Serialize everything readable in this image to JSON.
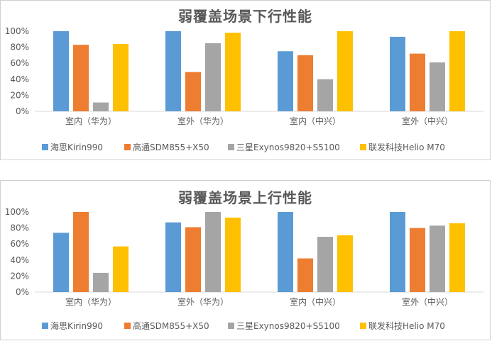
{
  "colors": {
    "series": [
      "#5b9bd5",
      "#ed7d31",
      "#a5a5a5",
      "#ffc000"
    ],
    "axis": "#d9d9d9",
    "text": "#595959"
  },
  "chart_data": [
    {
      "type": "bar",
      "title": "弱覆盖场景下行性能",
      "categories": [
        "室内（华为）",
        "室外（华为）",
        "室内（中兴）",
        "室外（中兴）"
      ],
      "ylim": [
        0,
        100
      ],
      "yticks": [
        "0%",
        "20%",
        "40%",
        "60%",
        "80%",
        "100%"
      ],
      "grid": false,
      "legend_position": "bottom",
      "series": [
        {
          "name": "海思Kirin990",
          "values": [
            100,
            100,
            75,
            93
          ]
        },
        {
          "name": "高通SDM855+X50",
          "values": [
            83,
            49,
            70,
            72
          ]
        },
        {
          "name": "三星Exynos9820+S5100",
          "values": [
            11,
            85,
            40,
            61
          ]
        },
        {
          "name": "联发科技Helio M70",
          "values": [
            84,
            98,
            100,
            100
          ]
        }
      ]
    },
    {
      "type": "bar",
      "title": "弱覆盖场景上行性能",
      "categories": [
        "室内（华为）",
        "室外（华为）",
        "室内（中兴）",
        "室外（中兴）"
      ],
      "ylim": [
        0,
        100
      ],
      "yticks": [
        "0%",
        "20%",
        "40%",
        "60%",
        "80%",
        "100%"
      ],
      "grid": false,
      "legend_position": "bottom",
      "series": [
        {
          "name": "海思Kirin990",
          "values": [
            74,
            87,
            100,
            100
          ]
        },
        {
          "name": "高通SDM855+X50",
          "values": [
            100,
            81,
            42,
            80
          ]
        },
        {
          "name": "三星Exynos9820+S5100",
          "values": [
            24,
            100,
            69,
            83
          ]
        },
        {
          "name": "联发科技Helio M70",
          "values": [
            57,
            93,
            71,
            86
          ]
        }
      ]
    }
  ]
}
